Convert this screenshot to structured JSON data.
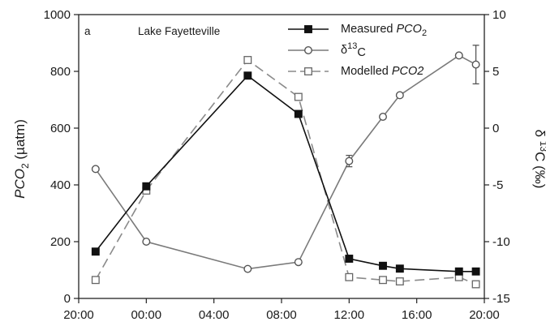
{
  "chart_data": {
    "type": "line",
    "panel_label": "a",
    "title": "Lake Fayetteville",
    "x": {
      "ticks": [
        "20:00",
        "00:00",
        "04:00",
        "08:00",
        "12:00",
        "16:00",
        "20:00"
      ],
      "range_hours": [
        20,
        44
      ]
    },
    "y_left": {
      "label_parts": [
        "PCO",
        "2",
        " (µatm)"
      ],
      "range": [
        0,
        1000
      ],
      "ticks": [
        "0",
        "200",
        "400",
        "600",
        "800",
        "1000"
      ]
    },
    "y_right": {
      "label_parts": [
        "δ ",
        "13",
        "C (‰)"
      ],
      "range": [
        -15,
        10
      ],
      "ticks": [
        "-15",
        "-10",
        "-5",
        "0",
        "5",
        "10"
      ]
    },
    "legend_position": "top-right",
    "series": [
      {
        "name": "Measured PCO2",
        "legend_parts": [
          "Measured ",
          "PCO",
          "2"
        ],
        "axis": "left",
        "marker": "filled-square",
        "line": "solid",
        "points": [
          {
            "x": "21:00",
            "y": 165
          },
          {
            "x": "00:00",
            "y": 395
          },
          {
            "x": "06:00",
            "y": 785
          },
          {
            "x": "09:00",
            "y": 650
          },
          {
            "x": "12:00",
            "y": 140
          },
          {
            "x": "14:00",
            "y": 115
          },
          {
            "x": "15:00",
            "y": 105
          },
          {
            "x": "18:30",
            "y": 95
          },
          {
            "x": "19:30",
            "y": 95
          }
        ]
      },
      {
        "name": "δ13C",
        "legend_parts": [
          "δ",
          "13",
          "C"
        ],
        "axis": "right",
        "marker": "open-circle",
        "line": "solid",
        "points": [
          {
            "x": "21:00",
            "y": -3.6
          },
          {
            "x": "00:00",
            "y": -10.0
          },
          {
            "x": "06:00",
            "y": -12.4
          },
          {
            "x": "09:00",
            "y": -11.8
          },
          {
            "x": "12:00",
            "y": -2.9,
            "err": 0.5
          },
          {
            "x": "14:00",
            "y": 1.0
          },
          {
            "x": "15:00",
            "y": 2.9
          },
          {
            "x": "18:30",
            "y": 6.4
          },
          {
            "x": "19:30",
            "y": 5.6,
            "err": 1.7
          }
        ]
      },
      {
        "name": "Modelled PCO2",
        "legend_parts": [
          "Modelled ",
          "PCO2",
          ""
        ],
        "axis": "left",
        "marker": "open-square",
        "line": "dashed",
        "points": [
          {
            "x": "21:00",
            "y": 65
          },
          {
            "x": "00:00",
            "y": 380
          },
          {
            "x": "06:00",
            "y": 840
          },
          {
            "x": "09:00",
            "y": 710
          },
          {
            "x": "12:00",
            "y": 75
          },
          {
            "x": "14:00",
            "y": 65
          },
          {
            "x": "15:00",
            "y": 60
          },
          {
            "x": "18:30",
            "y": 75
          },
          {
            "x": "19:30",
            "y": 50
          }
        ]
      }
    ]
  }
}
